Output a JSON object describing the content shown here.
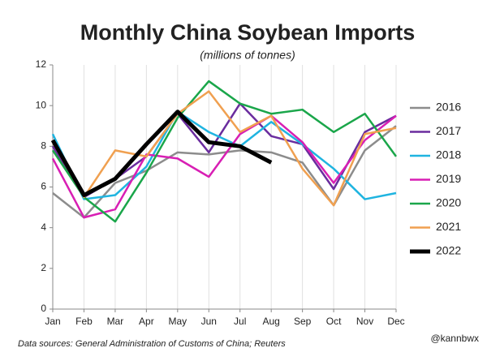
{
  "chart_data": {
    "type": "line",
    "title": "Monthly China Soybean Imports",
    "subtitle": "(millions of tonnes)",
    "source": "Data sources: General Administration of Customs of China; Reuters",
    "credit": "@kannbwx",
    "categories": [
      "Jan",
      "Feb",
      "Mar",
      "Apr",
      "May",
      "Jun",
      "Jul",
      "Aug",
      "Sep",
      "Oct",
      "Nov",
      "Dec"
    ],
    "ylim": [
      0,
      12
    ],
    "yticks": [
      0,
      2,
      4,
      6,
      8,
      10,
      12
    ],
    "grid": true,
    "legend": "right",
    "series": [
      {
        "name": "2016",
        "color": "#8c8c8c",
        "width": 2.5,
        "values": [
          5.7,
          4.5,
          6.2,
          6.8,
          7.7,
          7.6,
          7.8,
          7.7,
          7.2,
          5.1,
          7.8,
          9.0
        ]
      },
      {
        "name": "2017",
        "color": "#6a2c9e",
        "width": 2.5,
        "values": [
          8.0,
          5.5,
          6.4,
          7.5,
          9.6,
          7.7,
          10.1,
          8.5,
          8.1,
          5.9,
          8.7,
          9.5
        ]
      },
      {
        "name": "2018",
        "color": "#1fb4e0",
        "width": 2.5,
        "values": [
          8.6,
          5.4,
          5.6,
          7.0,
          9.7,
          8.7,
          8.0,
          9.2,
          8.1,
          6.9,
          5.4,
          5.7
        ]
      },
      {
        "name": "2019",
        "color": "#d81fb4",
        "width": 2.5,
        "values": [
          7.4,
          4.5,
          4.9,
          7.6,
          7.4,
          6.5,
          8.6,
          9.5,
          8.2,
          6.2,
          8.3,
          9.5
        ]
      },
      {
        "name": "2020",
        "color": "#1aa64a",
        "width": 2.5,
        "values": [
          7.8,
          5.5,
          4.3,
          6.7,
          9.4,
          11.2,
          10.1,
          9.6,
          9.8,
          8.7,
          9.6,
          7.5
        ]
      },
      {
        "name": "2021",
        "color": "#f0a050",
        "width": 2.5,
        "values": [
          8.2,
          5.5,
          7.8,
          7.5,
          9.6,
          10.7,
          8.7,
          9.5,
          6.9,
          5.1,
          8.6,
          8.9
        ]
      },
      {
        "name": "2022",
        "color": "#000000",
        "width": 5,
        "values": [
          8.3,
          5.6,
          6.4,
          8.1,
          9.7,
          8.2,
          8.0,
          7.2,
          null,
          null,
          null,
          null
        ]
      }
    ]
  }
}
